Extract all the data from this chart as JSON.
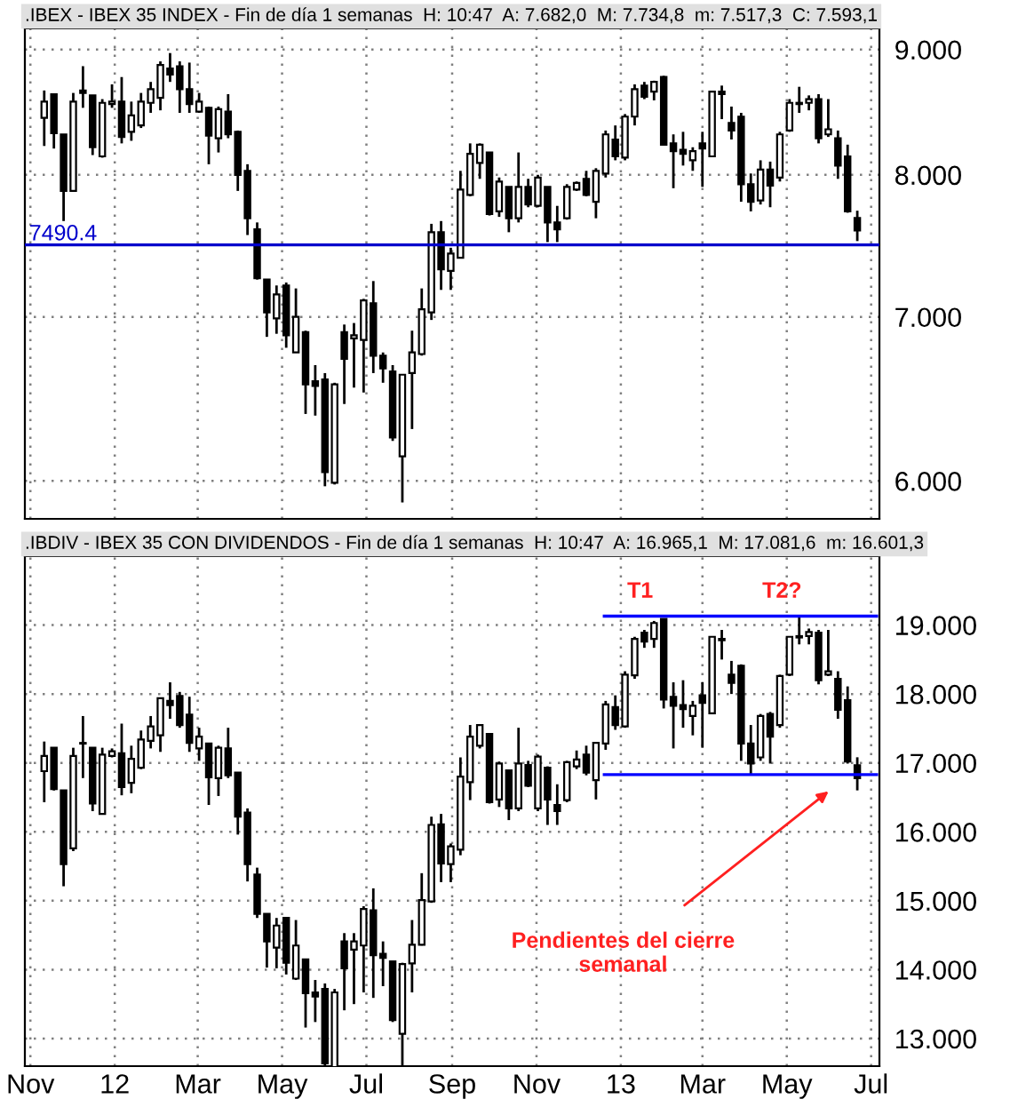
{
  "chart_data": [
    {
      "type": "candlestick",
      "title": ".IBEX - IBEX 35 INDEX - Fin de día 1 semanas  H: 10:47  A: 7.682,0  M: 7.734,8  m: 7.517,3  C: 7.593,1",
      "x": [
        "2011-11-11",
        "2011-11-18",
        "2011-11-25",
        "2011-12-02",
        "2011-12-09",
        "2011-12-16",
        "2011-12-23",
        "2011-12-30",
        "2012-01-06",
        "2012-01-13",
        "2012-01-20",
        "2012-01-27",
        "2012-02-03",
        "2012-02-10",
        "2012-02-17",
        "2012-02-24",
        "2012-03-02",
        "2012-03-09",
        "2012-03-16",
        "2012-03-23",
        "2012-03-30",
        "2012-04-06",
        "2012-04-13",
        "2012-04-20",
        "2012-04-27",
        "2012-05-04",
        "2012-05-11",
        "2012-05-18",
        "2012-05-25",
        "2012-06-01",
        "2012-06-08",
        "2012-06-15",
        "2012-06-22",
        "2012-06-29",
        "2012-07-06",
        "2012-07-13",
        "2012-07-20",
        "2012-07-27",
        "2012-08-03",
        "2012-08-10",
        "2012-08-17",
        "2012-08-24",
        "2012-08-31",
        "2012-09-07",
        "2012-09-14",
        "2012-09-21",
        "2012-09-28",
        "2012-10-05",
        "2012-10-12",
        "2012-10-19",
        "2012-10-26",
        "2012-11-02",
        "2012-11-09",
        "2012-11-16",
        "2012-11-23",
        "2012-11-30",
        "2012-12-07",
        "2012-12-14",
        "2012-12-21",
        "2012-12-28",
        "2013-01-04",
        "2013-01-11",
        "2013-01-18",
        "2013-01-25",
        "2013-02-01",
        "2013-02-08",
        "2013-02-15",
        "2013-02-22",
        "2013-03-01",
        "2013-03-08",
        "2013-03-15",
        "2013-03-22",
        "2013-03-29",
        "2013-04-05",
        "2013-04-12",
        "2013-04-19",
        "2013-04-26",
        "2013-05-03",
        "2013-05-10",
        "2013-05-17",
        "2013-05-24",
        "2013-05-31",
        "2013-06-07",
        "2013-06-14",
        "2013-06-21"
      ],
      "ohlc": [
        [
          8440,
          8660,
          8220,
          8570
        ],
        [
          8630,
          8630,
          8200,
          8320
        ],
        [
          8310,
          8310,
          7660,
          7880
        ],
        [
          7880,
          8640,
          7880,
          8570
        ],
        [
          8660,
          8860,
          8520,
          8640
        ],
        [
          8620,
          8620,
          8150,
          8210
        ],
        [
          8140,
          8590,
          8130,
          8560
        ],
        [
          8550,
          8710,
          8520,
          8570
        ],
        [
          8570,
          8770,
          8240,
          8290
        ],
        [
          8330,
          8570,
          8260,
          8460
        ],
        [
          8380,
          8640,
          8360,
          8570
        ],
        [
          8560,
          8730,
          8480,
          8670
        ],
        [
          8600,
          8900,
          8500,
          8870
        ],
        [
          8840,
          8970,
          8730,
          8790
        ],
        [
          8860,
          8900,
          8480,
          8670
        ],
        [
          8670,
          8890,
          8480,
          8550
        ],
        [
          8490,
          8640,
          8480,
          8570
        ],
        [
          8520,
          8530,
          8080,
          8300
        ],
        [
          8280,
          8530,
          8170,
          8510
        ],
        [
          8490,
          8630,
          8280,
          8310
        ],
        [
          8330,
          8340,
          7880,
          8000
        ],
        [
          8030,
          8080,
          7560,
          7680
        ],
        [
          7600,
          7650,
          7250,
          7260
        ],
        [
          7250,
          7250,
          6870,
          7030
        ],
        [
          6990,
          7210,
          6890,
          7150
        ],
        [
          7210,
          7230,
          6800,
          6880
        ],
        [
          6770,
          7190,
          6770,
          7000
        ],
        [
          6900,
          6910,
          6390,
          6570
        ],
        [
          6590,
          6690,
          6380,
          6560
        ],
        [
          6600,
          6640,
          5970,
          6050
        ],
        [
          5990,
          6580,
          5980,
          6570
        ],
        [
          6900,
          6950,
          6450,
          6730
        ],
        [
          6860,
          6960,
          6550,
          6880
        ],
        [
          6850,
          7120,
          6520,
          7110
        ],
        [
          7090,
          7240,
          6640,
          6750
        ],
        [
          6750,
          6770,
          6580,
          6670
        ],
        [
          6650,
          6690,
          6230,
          6250
        ],
        [
          6140,
          6630,
          5880,
          6630
        ],
        [
          6640,
          6910,
          6300,
          6770
        ],
        [
          6760,
          7190,
          6750,
          7050
        ],
        [
          7030,
          7640,
          6980,
          7580
        ],
        [
          7580,
          7660,
          7180,
          7320
        ],
        [
          7310,
          7470,
          7180,
          7430
        ],
        [
          7400,
          8030,
          7400,
          7890
        ],
        [
          7850,
          8240,
          7840,
          8160
        ],
        [
          8090,
          8240,
          7970,
          8230
        ],
        [
          8170,
          8170,
          7700,
          7710
        ],
        [
          7730,
          7980,
          7690,
          7950
        ],
        [
          7910,
          7910,
          7580,
          7680
        ],
        [
          7680,
          8170,
          7650,
          7910
        ],
        [
          7910,
          7970,
          7760,
          7780
        ],
        [
          7770,
          8000,
          7760,
          7980
        ],
        [
          7910,
          7910,
          7510,
          7650
        ],
        [
          7650,
          7770,
          7510,
          7600
        ],
        [
          7680,
          7930,
          7670,
          7910
        ],
        [
          7890,
          7950,
          7880,
          7940
        ],
        [
          7970,
          8030,
          7840,
          7850
        ],
        [
          7800,
          8050,
          7680,
          8030
        ],
        [
          8010,
          8340,
          7980,
          8310
        ],
        [
          8270,
          8380,
          8110,
          8140
        ],
        [
          8130,
          8470,
          8110,
          8450
        ],
        [
          8450,
          8710,
          8380,
          8670
        ],
        [
          8700,
          8730,
          8590,
          8610
        ],
        [
          8650,
          8740,
          8580,
          8730
        ],
        [
          8770,
          8780,
          8230,
          8230
        ],
        [
          8240,
          8310,
          7900,
          8180
        ],
        [
          8190,
          8330,
          8070,
          8160
        ],
        [
          8110,
          8210,
          8030,
          8180
        ],
        [
          8240,
          8330,
          7910,
          8200
        ],
        [
          8140,
          8650,
          8140,
          8650
        ],
        [
          8650,
          8700,
          8430,
          8630
        ],
        [
          8400,
          8530,
          8270,
          8340
        ],
        [
          8450,
          8480,
          7800,
          7930
        ],
        [
          7930,
          8010,
          7730,
          7800
        ],
        [
          7810,
          8110,
          7780,
          8040
        ],
        [
          8040,
          8100,
          7760,
          7920
        ],
        [
          7980,
          8330,
          7950,
          8310
        ],
        [
          8340,
          8590,
          8330,
          8560
        ],
        [
          8560,
          8690,
          8480,
          8550
        ],
        [
          8560,
          8620,
          8500,
          8590
        ],
        [
          8590,
          8630,
          8240,
          8280
        ],
        [
          8310,
          8590,
          8290,
          8350
        ],
        [
          8280,
          8340,
          7970,
          8070
        ],
        [
          8140,
          8230,
          7720,
          7730
        ],
        [
          7682.0,
          7734.8,
          7517.3,
          7593.1
        ]
      ],
      "xlim": [
        "2011-10-28",
        "2013-07-07"
      ],
      "xticks": [
        {
          "value": "2011-11-01",
          "label": null
        },
        {
          "value": "2012-01-01",
          "label": null
        },
        {
          "value": "2012-03-01",
          "label": null
        },
        {
          "value": "2012-05-01",
          "label": null
        },
        {
          "value": "2012-07-01",
          "label": null
        },
        {
          "value": "2012-09-01",
          "label": null
        },
        {
          "value": "2012-11-01",
          "label": null
        },
        {
          "value": "2013-01-01",
          "label": null
        },
        {
          "value": "2013-03-01",
          "label": null
        },
        {
          "value": "2013-05-01",
          "label": null
        },
        {
          "value": "2013-07-01",
          "label": null
        }
      ],
      "ylim": [
        5790,
        9180
      ],
      "yticks": [
        {
          "value": 6000,
          "label": "6.000"
        },
        {
          "value": 7000,
          "label": "7.000"
        },
        {
          "value": 8000,
          "label": "8.000"
        },
        {
          "value": 9000,
          "label": "9.000"
        }
      ],
      "log": true,
      "grid": true,
      "tick_labels": "y",
      "ref_lines": [
        {
          "axis": "y",
          "value": 7490.4,
          "label": "7490.4",
          "color": "#0000cc"
        }
      ]
    },
    {
      "type": "candlestick",
      "title": ".IBDIV - IBEX 35 CON DIVIDENDOS - Fin de día 1 semanas  H: 10:47  A: 16.965,1  M: 17.081,6  m: 16.601,3",
      "x": [
        "2011-11-11",
        "2011-11-18",
        "2011-11-25",
        "2011-12-02",
        "2011-12-09",
        "2011-12-16",
        "2011-12-23",
        "2011-12-30",
        "2012-01-06",
        "2012-01-13",
        "2012-01-20",
        "2012-01-27",
        "2012-02-03",
        "2012-02-10",
        "2012-02-17",
        "2012-02-24",
        "2012-03-02",
        "2012-03-09",
        "2012-03-16",
        "2012-03-23",
        "2012-03-30",
        "2012-04-06",
        "2012-04-13",
        "2012-04-20",
        "2012-04-27",
        "2012-05-04",
        "2012-05-11",
        "2012-05-18",
        "2012-05-25",
        "2012-06-01",
        "2012-06-08",
        "2012-06-15",
        "2012-06-22",
        "2012-06-29",
        "2012-07-06",
        "2012-07-13",
        "2012-07-20",
        "2012-07-27",
        "2012-08-03",
        "2012-08-10",
        "2012-08-17",
        "2012-08-24",
        "2012-08-31",
        "2012-09-07",
        "2012-09-14",
        "2012-09-21",
        "2012-09-28",
        "2012-10-05",
        "2012-10-12",
        "2012-10-19",
        "2012-10-26",
        "2012-11-02",
        "2012-11-09",
        "2012-11-16",
        "2012-11-23",
        "2012-11-30",
        "2012-12-07",
        "2012-12-14",
        "2012-12-21",
        "2012-12-28",
        "2013-01-04",
        "2013-01-11",
        "2013-01-18",
        "2013-01-25",
        "2013-02-01",
        "2013-02-08",
        "2013-02-15",
        "2013-02-22",
        "2013-03-01",
        "2013-03-08",
        "2013-03-15",
        "2013-03-22",
        "2013-03-29",
        "2013-04-05",
        "2013-04-12",
        "2013-04-19",
        "2013-04-26",
        "2013-05-03",
        "2013-05-10",
        "2013-05-17",
        "2013-05-24",
        "2013-05-31",
        "2013-06-07",
        "2013-06-14",
        "2013-06-21"
      ],
      "ohlc": [
        [
          16880,
          17310,
          16430,
          17100
        ],
        [
          17220,
          17220,
          16600,
          16620
        ],
        [
          16600,
          16600,
          15210,
          15530
        ],
        [
          15760,
          17220,
          15720,
          17100
        ],
        [
          17290,
          17680,
          16780,
          17280
        ],
        [
          17220,
          17220,
          16300,
          16410
        ],
        [
          16260,
          17220,
          16260,
          17120
        ],
        [
          17100,
          17210,
          17080,
          17170
        ],
        [
          17140,
          17570,
          16530,
          16650
        ],
        [
          16710,
          17250,
          16560,
          17060
        ],
        [
          16930,
          17470,
          16910,
          17340
        ],
        [
          17320,
          17680,
          17210,
          17530
        ],
        [
          17400,
          17940,
          17160,
          17940
        ],
        [
          17900,
          18170,
          17640,
          17840
        ],
        [
          17970,
          18030,
          17510,
          17550
        ],
        [
          17700,
          17960,
          17160,
          17290
        ],
        [
          17210,
          17510,
          17030,
          17380
        ],
        [
          17280,
          17280,
          16390,
          16790
        ],
        [
          16780,
          17250,
          16520,
          17220
        ],
        [
          17210,
          17510,
          16780,
          16820
        ],
        [
          16860,
          16860,
          15960,
          16220
        ],
        [
          16280,
          16340,
          15280,
          15530
        ],
        [
          15380,
          15480,
          14750,
          14810
        ],
        [
          14810,
          14810,
          14030,
          14410
        ],
        [
          14320,
          14750,
          14020,
          14640
        ],
        [
          14750,
          14750,
          13930,
          14100
        ],
        [
          13870,
          14720,
          13850,
          14350
        ],
        [
          14150,
          14150,
          13160,
          13660
        ],
        [
          13670,
          13850,
          13240,
          13610
        ],
        [
          13720,
          13800,
          12510,
          12640
        ],
        [
          12530,
          13720,
          12510,
          13670
        ],
        [
          14410,
          14530,
          13410,
          14020
        ],
        [
          14290,
          14530,
          13500,
          14410
        ],
        [
          14350,
          14920,
          13670,
          14880
        ],
        [
          14860,
          15180,
          13590,
          14210
        ],
        [
          14230,
          14410,
          13760,
          14170
        ],
        [
          14120,
          14120,
          13240,
          13270
        ],
        [
          13070,
          14100,
          12570,
          14080
        ],
        [
          14090,
          14720,
          13670,
          14360
        ],
        [
          14360,
          15400,
          14350,
          15010
        ],
        [
          14990,
          16220,
          14970,
          16100
        ],
        [
          16110,
          16260,
          15270,
          15540
        ],
        [
          15530,
          15830,
          15270,
          15790
        ],
        [
          15740,
          17080,
          15660,
          16800
        ],
        [
          16720,
          17550,
          16460,
          17380
        ],
        [
          17250,
          17550,
          17210,
          17550
        ],
        [
          17420,
          17420,
          16410,
          16430
        ],
        [
          16470,
          17020,
          16360,
          16990
        ],
        [
          16890,
          16890,
          16170,
          16340
        ],
        [
          16340,
          17510,
          16300,
          16990
        ],
        [
          16970,
          17030,
          16650,
          16670
        ],
        [
          16340,
          17120,
          16300,
          17090
        ],
        [
          16930,
          16950,
          16100,
          16470
        ],
        [
          16390,
          16690,
          16100,
          16300
        ],
        [
          16460,
          17030,
          16430,
          17010
        ],
        [
          16950,
          17180,
          16910,
          17050
        ],
        [
          17120,
          17250,
          16820,
          16860
        ],
        [
          16750,
          17290,
          16470,
          17290
        ],
        [
          17280,
          17900,
          17190,
          17850
        ],
        [
          17810,
          17980,
          17480,
          17550
        ],
        [
          17530,
          18330,
          17510,
          18280
        ],
        [
          18270,
          18830,
          18220,
          18800
        ],
        [
          18890,
          18930,
          18670,
          18760
        ],
        [
          18800,
          19060,
          18670,
          19030
        ],
        [
          19090,
          19090,
          17790,
          17920
        ],
        [
          17960,
          18170,
          17210,
          17830
        ],
        [
          17840,
          18200,
          17510,
          17780
        ],
        [
          17680,
          17900,
          17400,
          17830
        ],
        [
          17980,
          18170,
          17220,
          17870
        ],
        [
          17720,
          18830,
          17710,
          18830
        ],
        [
          18800,
          18930,
          18500,
          18780
        ],
        [
          18280,
          18480,
          18000,
          18160
        ],
        [
          18410,
          18430,
          17030,
          17280
        ],
        [
          17280,
          17550,
          16840,
          16990
        ],
        [
          17080,
          17710,
          17030,
          17680
        ],
        [
          17710,
          17740,
          16990,
          17380
        ],
        [
          17550,
          18280,
          17510,
          18260
        ],
        [
          18280,
          18840,
          18260,
          18830
        ],
        [
          18840,
          19120,
          18720,
          18820
        ],
        [
          18840,
          18950,
          18720,
          18900
        ],
        [
          18890,
          18930,
          18140,
          18200
        ],
        [
          18280,
          18930,
          18260,
          18330
        ],
        [
          18220,
          18330,
          17640,
          17770
        ],
        [
          17910,
          18110,
          16990,
          17020
        ],
        [
          16965.1,
          17081.6,
          16601.3,
          16780
        ]
      ],
      "series": [
        {
          "type": "line",
          "color": "#0000ff",
          "x": [
            "2012-12-20",
            "2013-07-05"
          ],
          "values": [
            19130,
            19130
          ]
        },
        {
          "type": "line",
          "color": "#0000ff",
          "x": [
            "2012-12-20",
            "2013-07-05"
          ],
          "values": [
            16830,
            16830
          ]
        }
      ],
      "xlim": [
        "2011-10-28",
        "2013-07-07"
      ],
      "xticks": [
        {
          "value": "2011-11-01",
          "label": "Nov"
        },
        {
          "value": "2012-01-01",
          "label": "12"
        },
        {
          "value": "2012-03-01",
          "label": "Mar"
        },
        {
          "value": "2012-05-01",
          "label": "May"
        },
        {
          "value": "2012-07-01",
          "label": "Jul"
        },
        {
          "value": "2012-09-01",
          "label": "Sep"
        },
        {
          "value": "2012-11-01",
          "label": "Nov"
        },
        {
          "value": "2013-01-01",
          "label": "13"
        },
        {
          "value": "2013-03-01",
          "label": "Mar"
        },
        {
          "value": "2013-05-01",
          "label": "May"
        },
        {
          "value": "2013-07-01",
          "label": "Jul"
        }
      ],
      "ylim": [
        12600,
        20000
      ],
      "yticks": [
        {
          "value": 13000,
          "label": "13.000"
        },
        {
          "value": 14000,
          "label": "14.000"
        },
        {
          "value": 15000,
          "label": "15.000"
        },
        {
          "value": 16000,
          "label": "16.000"
        },
        {
          "value": 17000,
          "label": "17.000"
        },
        {
          "value": 18000,
          "label": "18.000"
        },
        {
          "value": 19000,
          "label": "19.000"
        }
      ],
      "grid": true,
      "annotations": [
        "T1",
        "T2?",
        "Pendientes del cierre semanal"
      ]
    }
  ]
}
